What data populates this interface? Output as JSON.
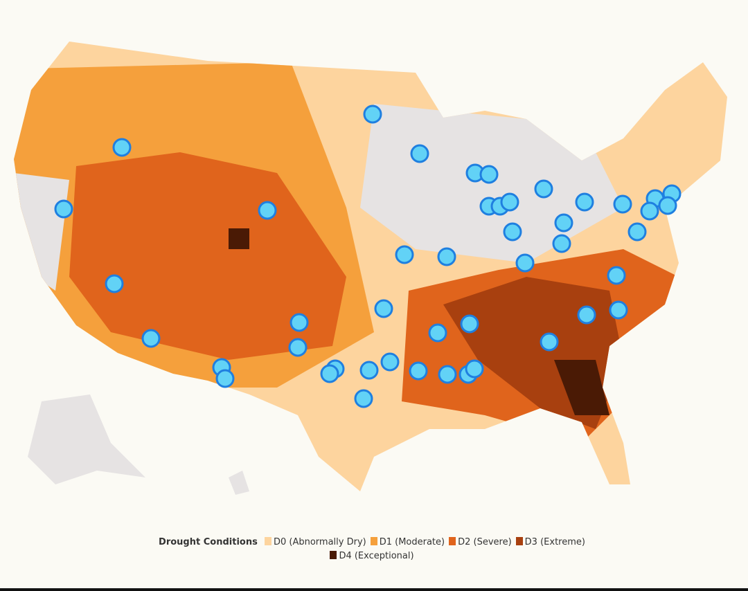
{
  "legend": {
    "title": "Drought Conditions",
    "items": [
      {
        "label": "D0 (Abnormally Dry)",
        "color": "#fdd49e"
      },
      {
        "label": "D1 (Moderate)",
        "color": "#f5a03c"
      },
      {
        "label": "D2 (Severe)",
        "color": "#e0641c"
      },
      {
        "label": "D3 (Extreme)",
        "color": "#a8400f"
      },
      {
        "label": "D4 (Exceptional)",
        "color": "#4a1a05"
      }
    ]
  }
}
